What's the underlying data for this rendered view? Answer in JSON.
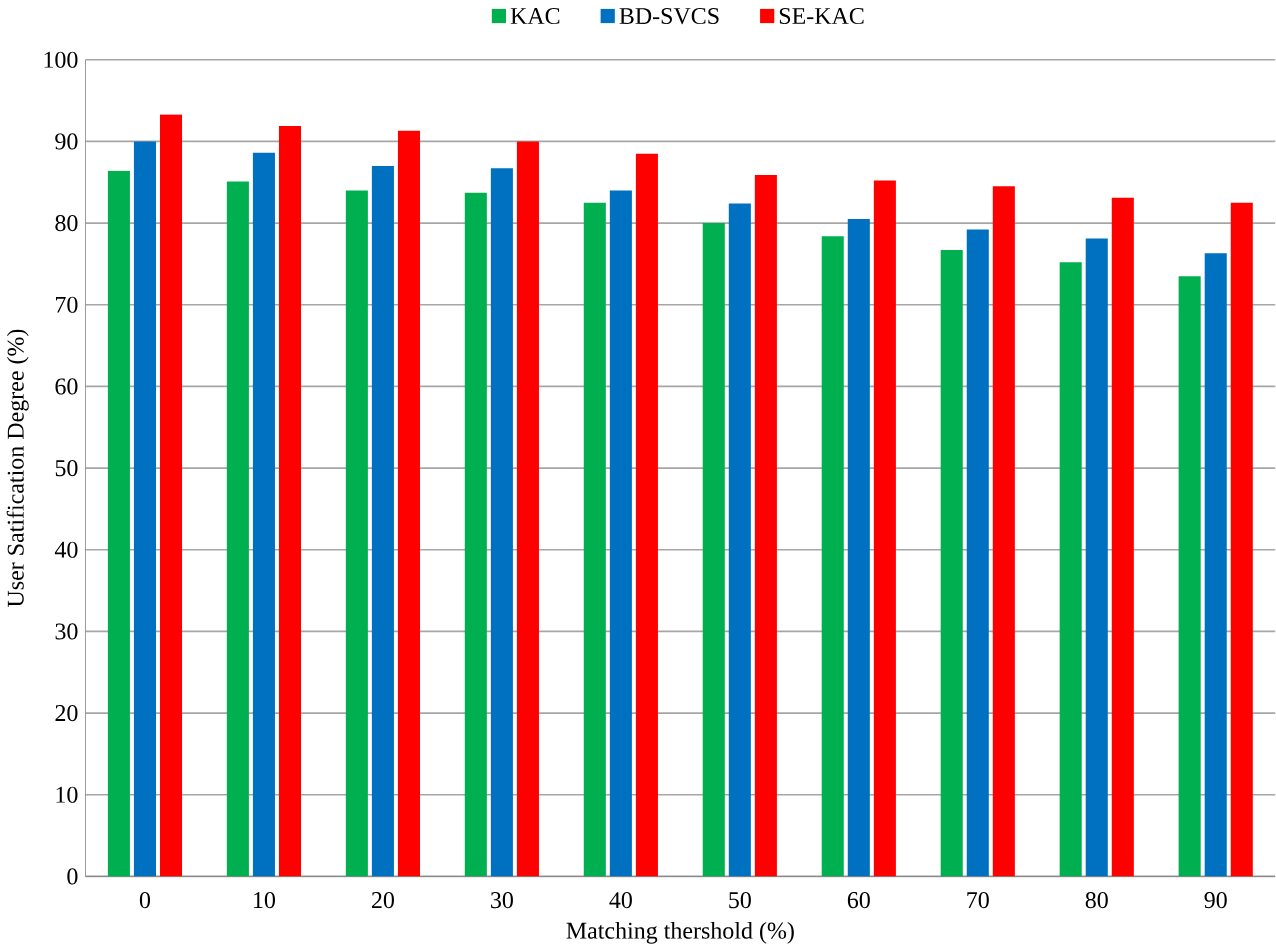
{
  "chart_data": {
    "type": "bar",
    "xlabel": "Matching thershold  (%)",
    "ylabel": "User Satification Degree (%)",
    "categories": [
      "0",
      "10",
      "20",
      "30",
      "40",
      "50",
      "60",
      "70",
      "80",
      "90"
    ],
    "series": [
      {
        "name": "KAC",
        "color": "#00b050",
        "values": [
          86.4,
          85.1,
          84.0,
          83.7,
          82.5,
          80.0,
          78.4,
          76.7,
          75.2,
          73.5
        ]
      },
      {
        "name": "BD-SVCS",
        "color": "#0070c0",
        "values": [
          90.0,
          88.6,
          87.0,
          86.7,
          84.0,
          82.4,
          80.5,
          79.2,
          78.1,
          76.3
        ]
      },
      {
        "name": "SE-KAC",
        "color": "#ff0000",
        "values": [
          93.3,
          91.9,
          91.3,
          90.0,
          88.5,
          85.9,
          85.2,
          84.5,
          83.1,
          82.5
        ]
      }
    ],
    "ylim": [
      0,
      100
    ],
    "yticks": [
      0,
      10,
      20,
      30,
      40,
      50,
      60,
      70,
      80,
      90,
      100
    ],
    "grid": "y",
    "legend": "top"
  }
}
